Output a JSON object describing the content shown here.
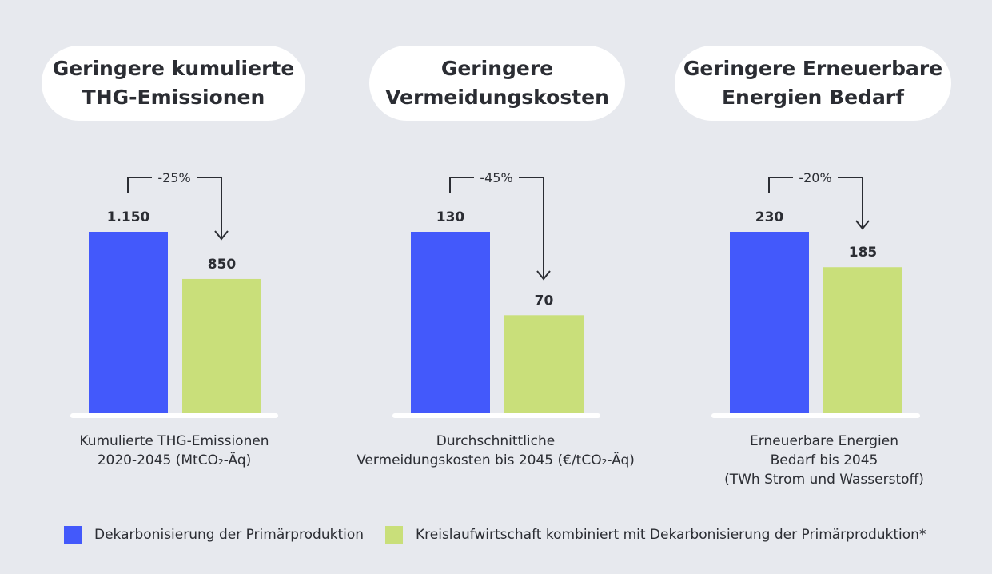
{
  "colors": {
    "primary": "#4359fb",
    "circular": "#c9df7a",
    "background": "#e7e9ee",
    "pill": "#ffffff",
    "baseline": "#ffffff",
    "text": "#2b2d33"
  },
  "panels": [
    {
      "title_lines": [
        "Geringere kumulierte",
        "THG-Emissionen"
      ],
      "caption_lines": [
        "Kumulierte THG-Emissionen",
        "2020-2045 (MtCO₂-Äq)"
      ]
    },
    {
      "title_lines": [
        "Geringere",
        "Vermeidungskosten"
      ],
      "caption_lines": [
        "Durchschnittliche",
        "Vermeidungskosten bis 2045 (€/tCO₂-Äq)"
      ]
    },
    {
      "title_lines": [
        "Geringere Erneuerbare",
        "Energien Bedarf"
      ],
      "caption_lines": [
        "Erneuerbare Energien",
        "Bedarf bis 2045",
        "(TWh Strom und Wasserstoff)"
      ]
    }
  ],
  "legend": [
    {
      "label": "Dekarbonisierung der Primärproduktion",
      "color": "#4359fb"
    },
    {
      "label": "Kreislaufwirtschaft kombiniert mit Dekarbonisierung der Primärproduktion*",
      "color": "#c9df7a"
    }
  ],
  "chart_data": [
    {
      "type": "bar",
      "categories": [
        "Dekarbonisierung der Primärproduktion",
        "Kreislaufwirtschaft kombiniert mit Dekarbonisierung der Primärproduktion*"
      ],
      "values": [
        1150,
        850
      ],
      "value_labels": [
        "1.150",
        "850"
      ],
      "change_label": "-25%",
      "ylim": [
        0,
        1150
      ]
    },
    {
      "type": "bar",
      "categories": [
        "Dekarbonisierung der Primärproduktion",
        "Kreislaufwirtschaft kombiniert mit Dekarbonisierung der Primärproduktion*"
      ],
      "values": [
        130,
        70
      ],
      "value_labels": [
        "130",
        "70"
      ],
      "change_label": "-45%",
      "ylim": [
        0,
        130
      ]
    },
    {
      "type": "bar",
      "categories": [
        "Dekarbonisierung der Primärproduktion",
        "Kreislaufwirtschaft kombiniert mit Dekarbonisierung der Primärproduktion*"
      ],
      "values": [
        230,
        185
      ],
      "value_labels": [
        "230",
        "185"
      ],
      "change_label": "-20%",
      "ylim": [
        0,
        230
      ]
    }
  ]
}
